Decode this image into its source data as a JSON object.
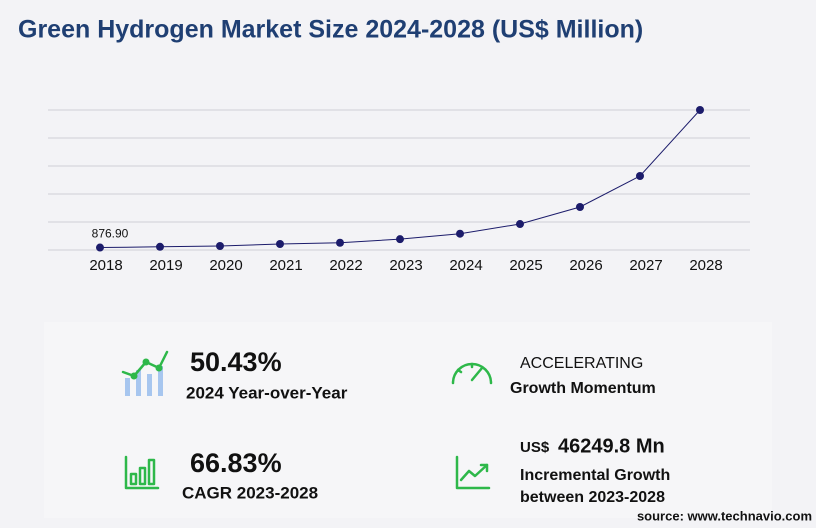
{
  "chart_data": {
    "type": "line",
    "title": "Green Hydrogen Market Size 2024-2028 (US$ Million)",
    "categories": [
      "2018",
      "2019",
      "2020",
      "2021",
      "2022",
      "2023",
      "2024",
      "2025",
      "2026",
      "2027",
      "2028"
    ],
    "values": [
      876.9,
      1150,
      1430,
      2150,
      2600,
      3880,
      5837,
      9300,
      15400,
      26500,
      50130
    ],
    "value_labels": [
      "876.90",
      null,
      null,
      null,
      null,
      null,
      null,
      null,
      null,
      null,
      null
    ],
    "color": "#1c1c6b",
    "ylim": [
      0,
      50130
    ],
    "grid": true
  },
  "kpis": [
    {
      "value": "50.43%",
      "label": "2024 Year-over-Year"
    },
    {
      "value": "ACCELERATING",
      "label": "Growth Momentum"
    },
    {
      "value": "66.83%",
      "label": "CAGR 2023-2028"
    },
    {
      "prefix": "US$",
      "value": "46249.8 Mn",
      "label": "Incremental Growth",
      "label2": "between 2023-2028"
    }
  ],
  "source": "source: www.technavio.com"
}
